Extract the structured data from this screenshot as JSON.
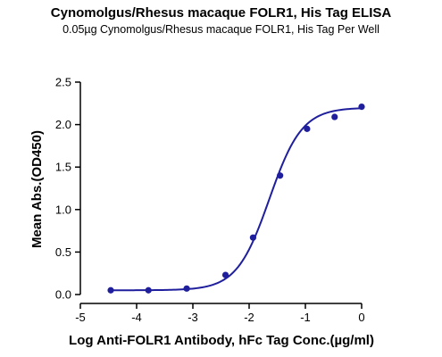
{
  "chart_data": {
    "type": "scatter",
    "title": "Cynomolgus/Rhesus macaque FOLR1, His Tag ELISA",
    "subtitle": "0.05µg Cynomolgus/Rhesus macaque FOLR1, His Tag Per Well",
    "xlabel": "Log Anti-FOLR1 Antibody, hFc Tag Conc.(µg/ml)",
    "ylabel": "Mean Abs.(OD450)",
    "xlim": [
      -5,
      0
    ],
    "ylim": [
      0,
      2.5
    ],
    "x_ticks": [
      "-5",
      "-4",
      "-3",
      "-2",
      "-1",
      "0"
    ],
    "y_ticks": [
      "0.0",
      "0.5",
      "1.0",
      "1.5",
      "2.0",
      "2.5"
    ],
    "grid": false,
    "series": [
      {
        "x": [
          -4.46,
          -3.79,
          -3.11,
          -2.42,
          -1.93,
          -1.45,
          -0.97,
          -0.48,
          0
        ],
        "y": [
          0.05,
          0.05,
          0.07,
          0.23,
          0.67,
          1.4,
          1.95,
          2.09,
          2.21
        ],
        "fit_curve": {
          "bottom": 0.05,
          "top": 2.2,
          "log_ec50": -1.64,
          "hill_slope": 1.5
        }
      }
    ],
    "colors": {
      "series": "#1f1f9e",
      "axis": "#000000"
    }
  }
}
